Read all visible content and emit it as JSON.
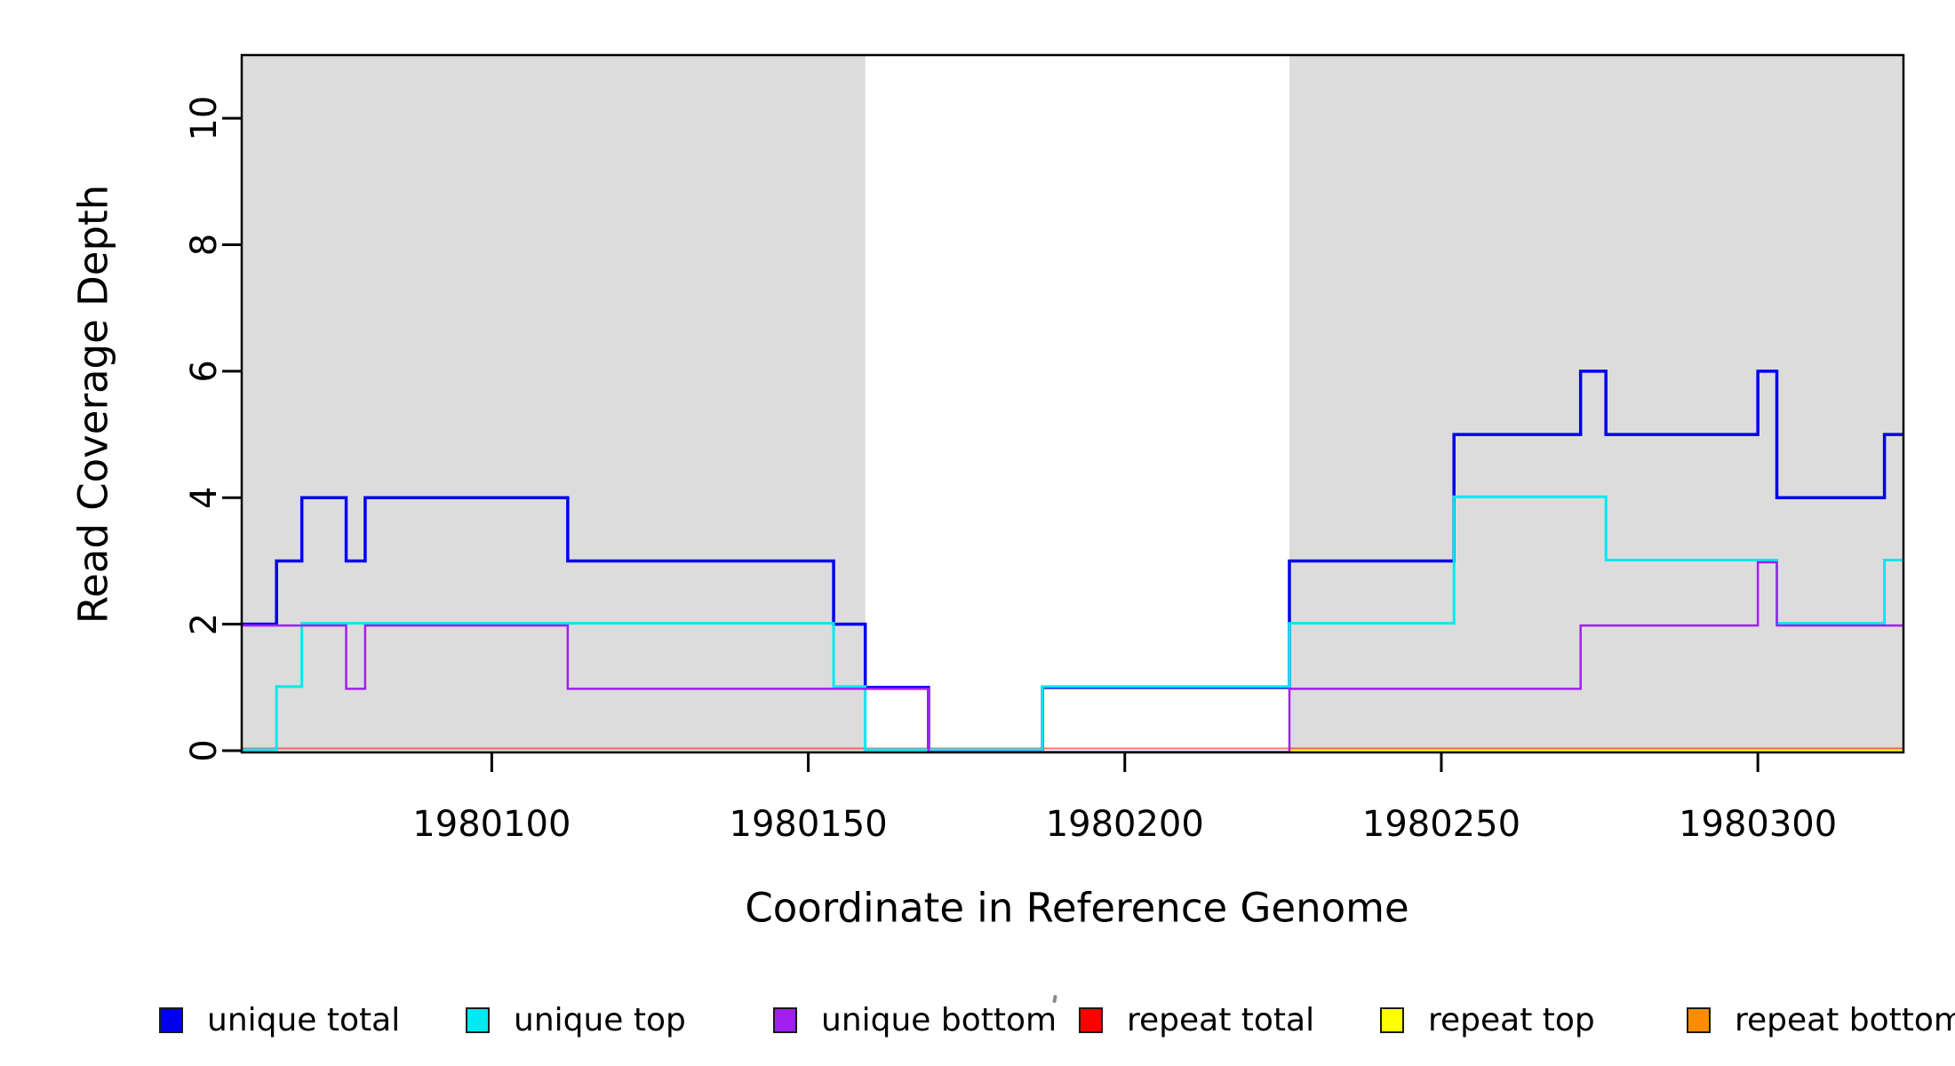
{
  "window": {
    "background": "#FFFFFF"
  },
  "chart_data": {
    "type": "line",
    "subtype": "step-coverage-plot",
    "title": "",
    "xlabel": "Coordinate in Reference Genome",
    "ylabel": "Read Coverage Depth",
    "xlim": [
      1980060.5,
      1980323
    ],
    "ylim": [
      0,
      11
    ],
    "x_ticks": [
      1980100,
      1980150,
      1980200,
      1980250,
      1980300
    ],
    "y_ticks": [
      0,
      2,
      4,
      6,
      8,
      10
    ],
    "grid": false,
    "plot_background": "#FFFFFF",
    "shaded_regions": [
      {
        "x1": 1980060.5,
        "x2": 1980159,
        "color": "#DCDCDC"
      },
      {
        "x1": 1980226,
        "x2": 1980323,
        "color": "#DCDCDC"
      }
    ],
    "series": [
      {
        "name": "unique total",
        "color": "#0000EE",
        "points": [
          [
            1980060.5,
            2
          ],
          [
            1980066,
            3
          ],
          [
            1980070,
            4
          ],
          [
            1980077,
            3
          ],
          [
            1980080,
            4
          ],
          [
            1980112,
            3
          ],
          [
            1980154,
            2
          ],
          [
            1980159,
            1
          ],
          [
            1980169,
            0
          ],
          [
            1980187,
            1
          ],
          [
            1980226,
            3
          ],
          [
            1980252,
            5
          ],
          [
            1980272,
            6
          ],
          [
            1980276,
            5
          ],
          [
            1980300,
            6
          ],
          [
            1980303,
            4
          ],
          [
            1980320,
            5
          ]
        ],
        "x_end": 1980323
      },
      {
        "name": "unique top",
        "color": "#00E8F0",
        "points": [
          [
            1980060.5,
            0
          ],
          [
            1980066,
            1
          ],
          [
            1980070,
            2
          ],
          [
            1980154,
            1
          ],
          [
            1980159,
            0
          ],
          [
            1980187,
            1
          ],
          [
            1980226,
            2
          ],
          [
            1980252,
            4
          ],
          [
            1980276,
            3
          ],
          [
            1980303,
            2
          ],
          [
            1980320,
            3
          ]
        ],
        "x_end": 1980323
      },
      {
        "name": "unique bottom",
        "color": "#A020F0",
        "points": [
          [
            1980060.5,
            2
          ],
          [
            1980077,
            1
          ],
          [
            1980080,
            2
          ],
          [
            1980112,
            1
          ],
          [
            1980169,
            0
          ],
          [
            1980226,
            1
          ],
          [
            1980272,
            2
          ],
          [
            1980300,
            3
          ],
          [
            1980303,
            2
          ]
        ],
        "x_end": 1980323
      },
      {
        "name": "repeat total",
        "color": "#FF0000",
        "points": [
          [
            1980060.5,
            0
          ]
        ],
        "x_end": 1980323
      },
      {
        "name": "repeat top",
        "color": "#FFFF00",
        "points": [
          [
            1980066,
            0
          ],
          [
            1980159,
            null
          ],
          [
            1980226,
            0
          ]
        ],
        "x_end": 1980323
      },
      {
        "name": "repeat bottom",
        "color": "#FF8C00",
        "points": [
          [
            1980066,
            0
          ],
          [
            1980159,
            null
          ],
          [
            1980226,
            0
          ]
        ],
        "x_end": 1980323
      }
    ],
    "legend": {
      "position": "bottom",
      "entries": [
        {
          "label": "unique total",
          "color": "#0000EE"
        },
        {
          "label": "unique top",
          "color": "#00E8F0"
        },
        {
          "label": "unique bottom",
          "color": "#A020F0"
        },
        {
          "label": "repeat total",
          "color": "#FF0000"
        },
        {
          "label": "repeat top",
          "color": "#FFFF00"
        },
        {
          "label": "repeat bottom",
          "color": "#FF8C00"
        }
      ]
    },
    "artifact_mark": {
      "x": 1185,
      "y": 1120
    }
  }
}
